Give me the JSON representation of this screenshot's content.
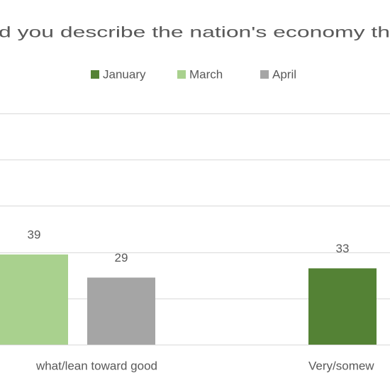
{
  "chart_data": {
    "type": "bar",
    "title": "d you describe the nation's economy th",
    "categories": [
      "what/lean toward good",
      "Very/somew"
    ],
    "series": [
      {
        "name": "January",
        "color": "#548235",
        "values": [
          null,
          33
        ]
      },
      {
        "name": "March",
        "color": "#a9d18e",
        "values": [
          39,
          null
        ]
      },
      {
        "name": "April",
        "color": "#a5a5a5",
        "values": [
          29,
          null
        ]
      }
    ],
    "ylim": [
      0,
      100
    ],
    "yticks": [
      0,
      20,
      40,
      60,
      80,
      100
    ],
    "grid": true
  }
}
